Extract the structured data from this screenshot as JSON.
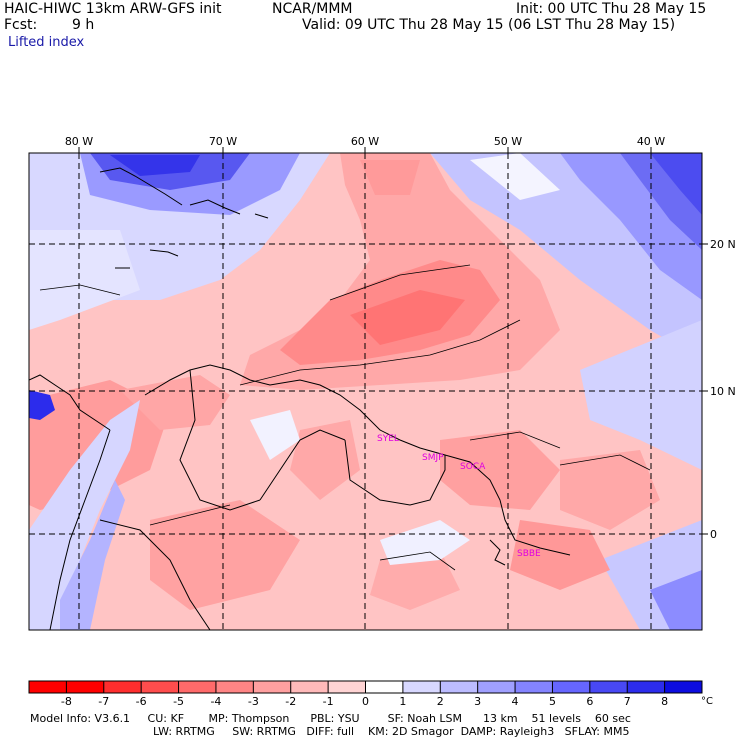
{
  "header": {
    "model_title": "HAIC-HIWC 13km ARW-GFS init",
    "center": "NCAR/MMM",
    "init": "Init: 00 UTC Thu 28 May 15",
    "fcst_label": "Fcst:",
    "fcst_value": "9 h",
    "valid": "Valid: 09 UTC Thu 28 May 15 (06 LST Thu 28 May 15)",
    "field": "Lifted index"
  },
  "map": {
    "lon_labels": [
      "80 W",
      "70 W",
      "60 W",
      "50 W",
      "40 W"
    ],
    "lat_labels": [
      "20 N",
      "10 N",
      "0"
    ],
    "stations": [
      "SYEL",
      "SMJP",
      "SOCA",
      "SBBE"
    ],
    "colors": {
      "border": "#000000",
      "station": "#e000e0"
    }
  },
  "colorbar": {
    "ticks": [
      "-8",
      "-7",
      "-6",
      "-5",
      "-4",
      "-3",
      "-2",
      "-1",
      "0",
      "1",
      "2",
      "3",
      "4",
      "5",
      "6",
      "7",
      "8"
    ],
    "unit": "°C",
    "colors": [
      "#ff0000",
      "#ff2e2e",
      "#ff4d4d",
      "#ff6a6a",
      "#ff8585",
      "#ffa0a0",
      "#ffbaba",
      "#ffd4d4",
      "#ffffff",
      "#d8d8ff",
      "#bcbcff",
      "#a0a0ff",
      "#8484ff",
      "#6666ff",
      "#4848f4",
      "#2c2cec",
      "#0c0ce0"
    ]
  },
  "model_info": {
    "line1": "Model Info: V3.6.1     CU: KF       MP: Thompson      PBL: YSU        SF: Noah LSM      13 km    51 levels    60 sec",
    "line2": "LW: RRTMG     SW: RRTMG   DIFF: full    KM: 2D Smagor  DAMP: Rayleigh3   SFLAY: MM5"
  }
}
